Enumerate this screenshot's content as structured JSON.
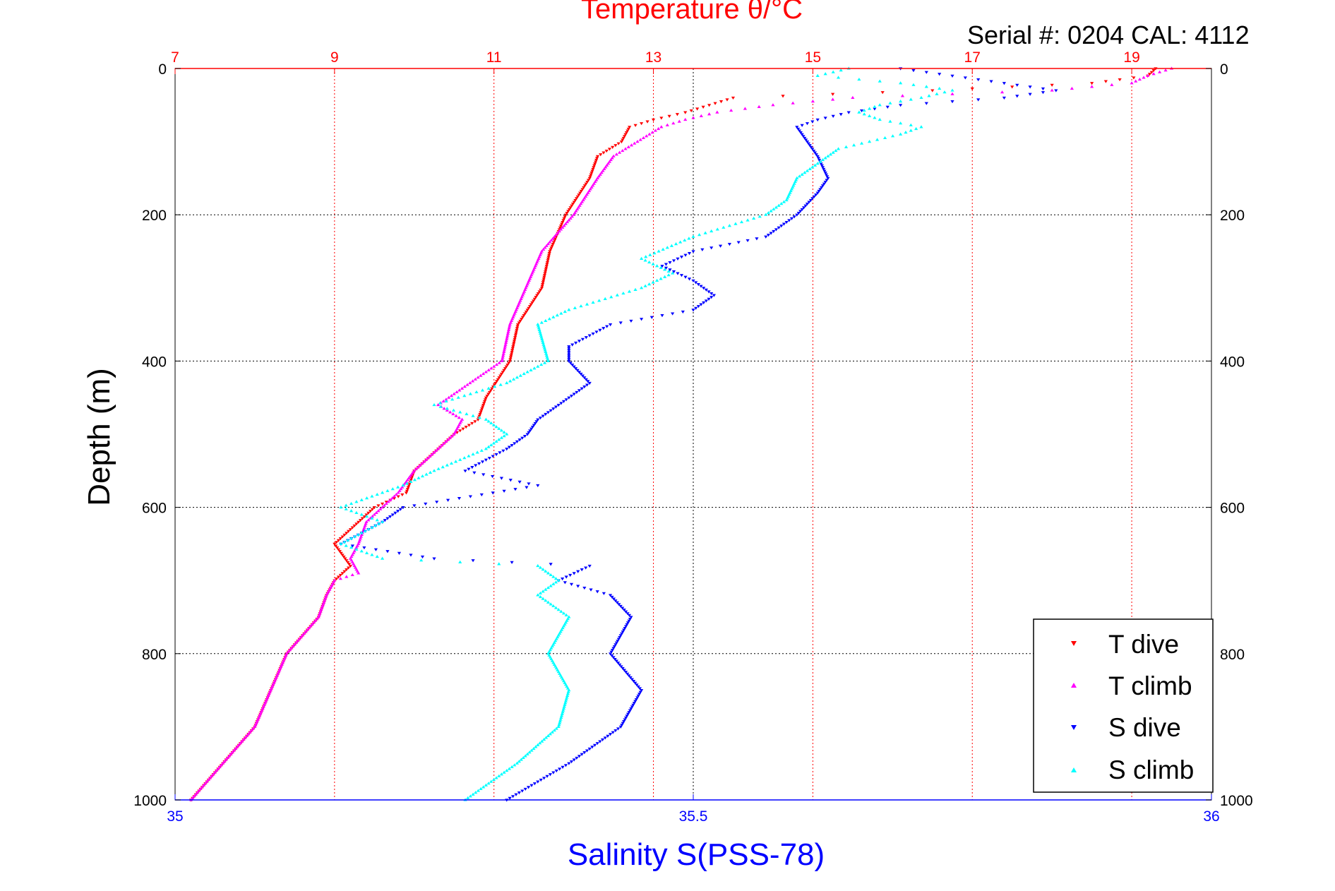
{
  "chart_data": {
    "type": "scatter",
    "title": "Temperature θ/°C",
    "subtitle": "Serial #: 0204  CAL: 4112",
    "ylabel": "Depth (m)",
    "xlabel": "Salinity S(PSS-78)",
    "colors": {
      "temp_axis": "#ff0000",
      "sal_axis": "#0000ff",
      "text": "#000000",
      "grid": "#000000"
    },
    "temp_axis": {
      "range": [
        7,
        20
      ],
      "ticks": [
        7,
        9,
        11,
        13,
        15,
        17,
        19
      ],
      "labels": [
        "7",
        "9",
        "11",
        "13",
        "15",
        "17",
        "19"
      ]
    },
    "sal_axis": {
      "range": [
        35,
        36
      ],
      "ticks": [
        35,
        35.5,
        36
      ],
      "labels": [
        "35",
        "35.5",
        "36"
      ]
    },
    "depth_axis": {
      "range": [
        0,
        1000
      ],
      "ticks": [
        0,
        200,
        400,
        600,
        800,
        1000
      ],
      "labels": [
        "0",
        "200",
        "400",
        "600",
        "800",
        "1000"
      ]
    },
    "legend": {
      "position": "bottom-right",
      "entries": [
        {
          "label": "T dive",
          "color": "#ff0000",
          "marker": "triangle-down"
        },
        {
          "label": "T climb",
          "color": "#ff00ff",
          "marker": "triangle-up"
        },
        {
          "label": "S dive",
          "color": "#0000ff",
          "marker": "triangle-down"
        },
        {
          "label": "S climb",
          "color": "#00ffff",
          "marker": "triangle-up"
        }
      ]
    },
    "series": [
      {
        "name": "T dive",
        "axis": "temp",
        "color": "#ff0000",
        "marker": "triangle-down",
        "depth": [
          0,
          10,
          20,
          30,
          40,
          50,
          60,
          70,
          80,
          100,
          120,
          150,
          200,
          250,
          300,
          350,
          400,
          450,
          480,
          500,
          520,
          550,
          580,
          600,
          620,
          650,
          680,
          700,
          720,
          750,
          800,
          850,
          900,
          950,
          1000
        ],
        "values": [
          19.3,
          19.2,
          18.5,
          16.5,
          14.0,
          13.7,
          13.4,
          13.0,
          12.7,
          12.6,
          12.3,
          12.2,
          11.9,
          11.7,
          11.6,
          11.3,
          11.2,
          10.9,
          10.8,
          10.5,
          10.3,
          10.0,
          9.9,
          9.5,
          9.3,
          9.0,
          9.2,
          9.0,
          8.9,
          8.8,
          8.4,
          8.2,
          8.0,
          7.6,
          7.2
        ]
      },
      {
        "name": "T climb",
        "axis": "temp",
        "color": "#ff00ff",
        "marker": "triangle-up",
        "depth": [
          0,
          10,
          20,
          30,
          40,
          50,
          60,
          70,
          80,
          100,
          120,
          150,
          200,
          250,
          300,
          350,
          400,
          430,
          460,
          480,
          500,
          520,
          550,
          580,
          600,
          620,
          650,
          670,
          690,
          700,
          720,
          750,
          800,
          850,
          900,
          950,
          1000
        ],
        "values": [
          19.5,
          19.2,
          19.0,
          18.0,
          15.5,
          14.5,
          13.8,
          13.4,
          13.1,
          12.8,
          12.5,
          12.3,
          12.0,
          11.6,
          11.4,
          11.2,
          11.1,
          10.7,
          10.3,
          10.6,
          10.5,
          10.3,
          10.0,
          9.8,
          9.6,
          9.4,
          9.3,
          9.2,
          9.3,
          9.0,
          8.9,
          8.8,
          8.4,
          8.2,
          8.0,
          7.6,
          7.2
        ]
      },
      {
        "name": "S dive",
        "axis": "sal",
        "color": "#0000ff",
        "marker": "triangle-down",
        "depth": [
          0,
          10,
          20,
          30,
          40,
          50,
          60,
          70,
          80,
          100,
          120,
          150,
          170,
          200,
          230,
          250,
          270,
          290,
          310,
          330,
          350,
          380,
          400,
          430,
          460,
          480,
          500,
          520,
          550,
          570,
          600,
          620,
          650,
          670,
          680,
          700,
          720,
          750,
          800,
          850,
          900,
          950,
          1000
        ],
        "values": [
          35.7,
          35.75,
          35.8,
          35.85,
          35.8,
          35.7,
          35.65,
          35.62,
          35.6,
          35.61,
          35.62,
          35.63,
          35.62,
          35.6,
          35.57,
          35.5,
          35.47,
          35.5,
          35.52,
          35.5,
          35.42,
          35.38,
          35.38,
          35.4,
          35.37,
          35.35,
          35.34,
          35.32,
          35.28,
          35.35,
          35.22,
          35.2,
          35.16,
          35.25,
          35.4,
          35.37,
          35.42,
          35.44,
          35.42,
          35.45,
          35.43,
          35.38,
          35.32
        ]
      },
      {
        "name": "S climb",
        "axis": "sal",
        "color": "#00ffff",
        "marker": "triangle-up",
        "depth": [
          0,
          10,
          20,
          30,
          40,
          50,
          60,
          70,
          80,
          90,
          100,
          110,
          120,
          150,
          180,
          200,
          230,
          260,
          280,
          300,
          330,
          350,
          400,
          430,
          460,
          480,
          500,
          520,
          550,
          570,
          600,
          620,
          650,
          670,
          680,
          700,
          720,
          750,
          800,
          850,
          900,
          950,
          1000
        ],
        "values": [
          35.65,
          35.62,
          35.7,
          35.75,
          35.72,
          35.68,
          35.66,
          35.68,
          35.72,
          35.7,
          35.67,
          35.64,
          35.63,
          35.6,
          35.59,
          35.57,
          35.5,
          35.45,
          35.48,
          35.45,
          35.38,
          35.35,
          35.36,
          35.32,
          35.25,
          35.3,
          35.32,
          35.3,
          35.25,
          35.22,
          35.16,
          35.2,
          35.16,
          35.2,
          35.35,
          35.37,
          35.35,
          35.38,
          35.36,
          35.38,
          35.37,
          35.33,
          35.28
        ]
      }
    ]
  }
}
